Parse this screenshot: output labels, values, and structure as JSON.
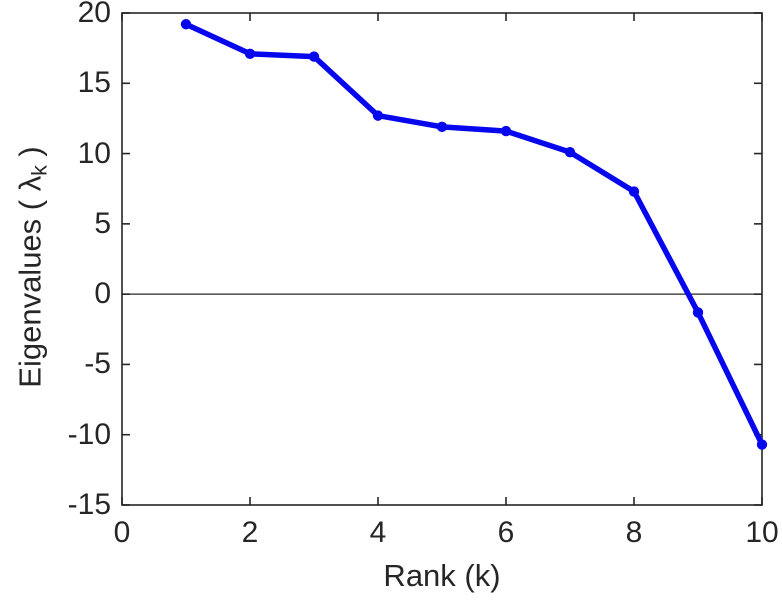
{
  "chart_data": {
    "type": "line",
    "title": "",
    "xlabel": "Rank (k)",
    "ylabel": "Eigenvalues ( λk )",
    "ylabel_parts": {
      "main": "Eigenvalues ( λ",
      "sub": "k",
      "end": " )"
    },
    "x": [
      1,
      2,
      3,
      4,
      5,
      6,
      7,
      8,
      9,
      10
    ],
    "series": [
      {
        "name": "eigenvalues",
        "values": [
          19.2,
          17.1,
          16.9,
          12.7,
          11.9,
          11.6,
          10.1,
          7.3,
          -1.3,
          -10.7
        ]
      }
    ],
    "xlim": [
      0,
      10
    ],
    "ylim": [
      -15,
      20
    ],
    "x_ticks": [
      0,
      2,
      4,
      6,
      8,
      10
    ],
    "y_ticks": [
      -15,
      -10,
      -5,
      0,
      5,
      10,
      15,
      20
    ],
    "grid": false,
    "legend_position": "none",
    "zero_line": true,
    "line_color": "#0707ee",
    "marker": "circle",
    "axis_color": "#262626",
    "background_color": "#ffffff"
  }
}
